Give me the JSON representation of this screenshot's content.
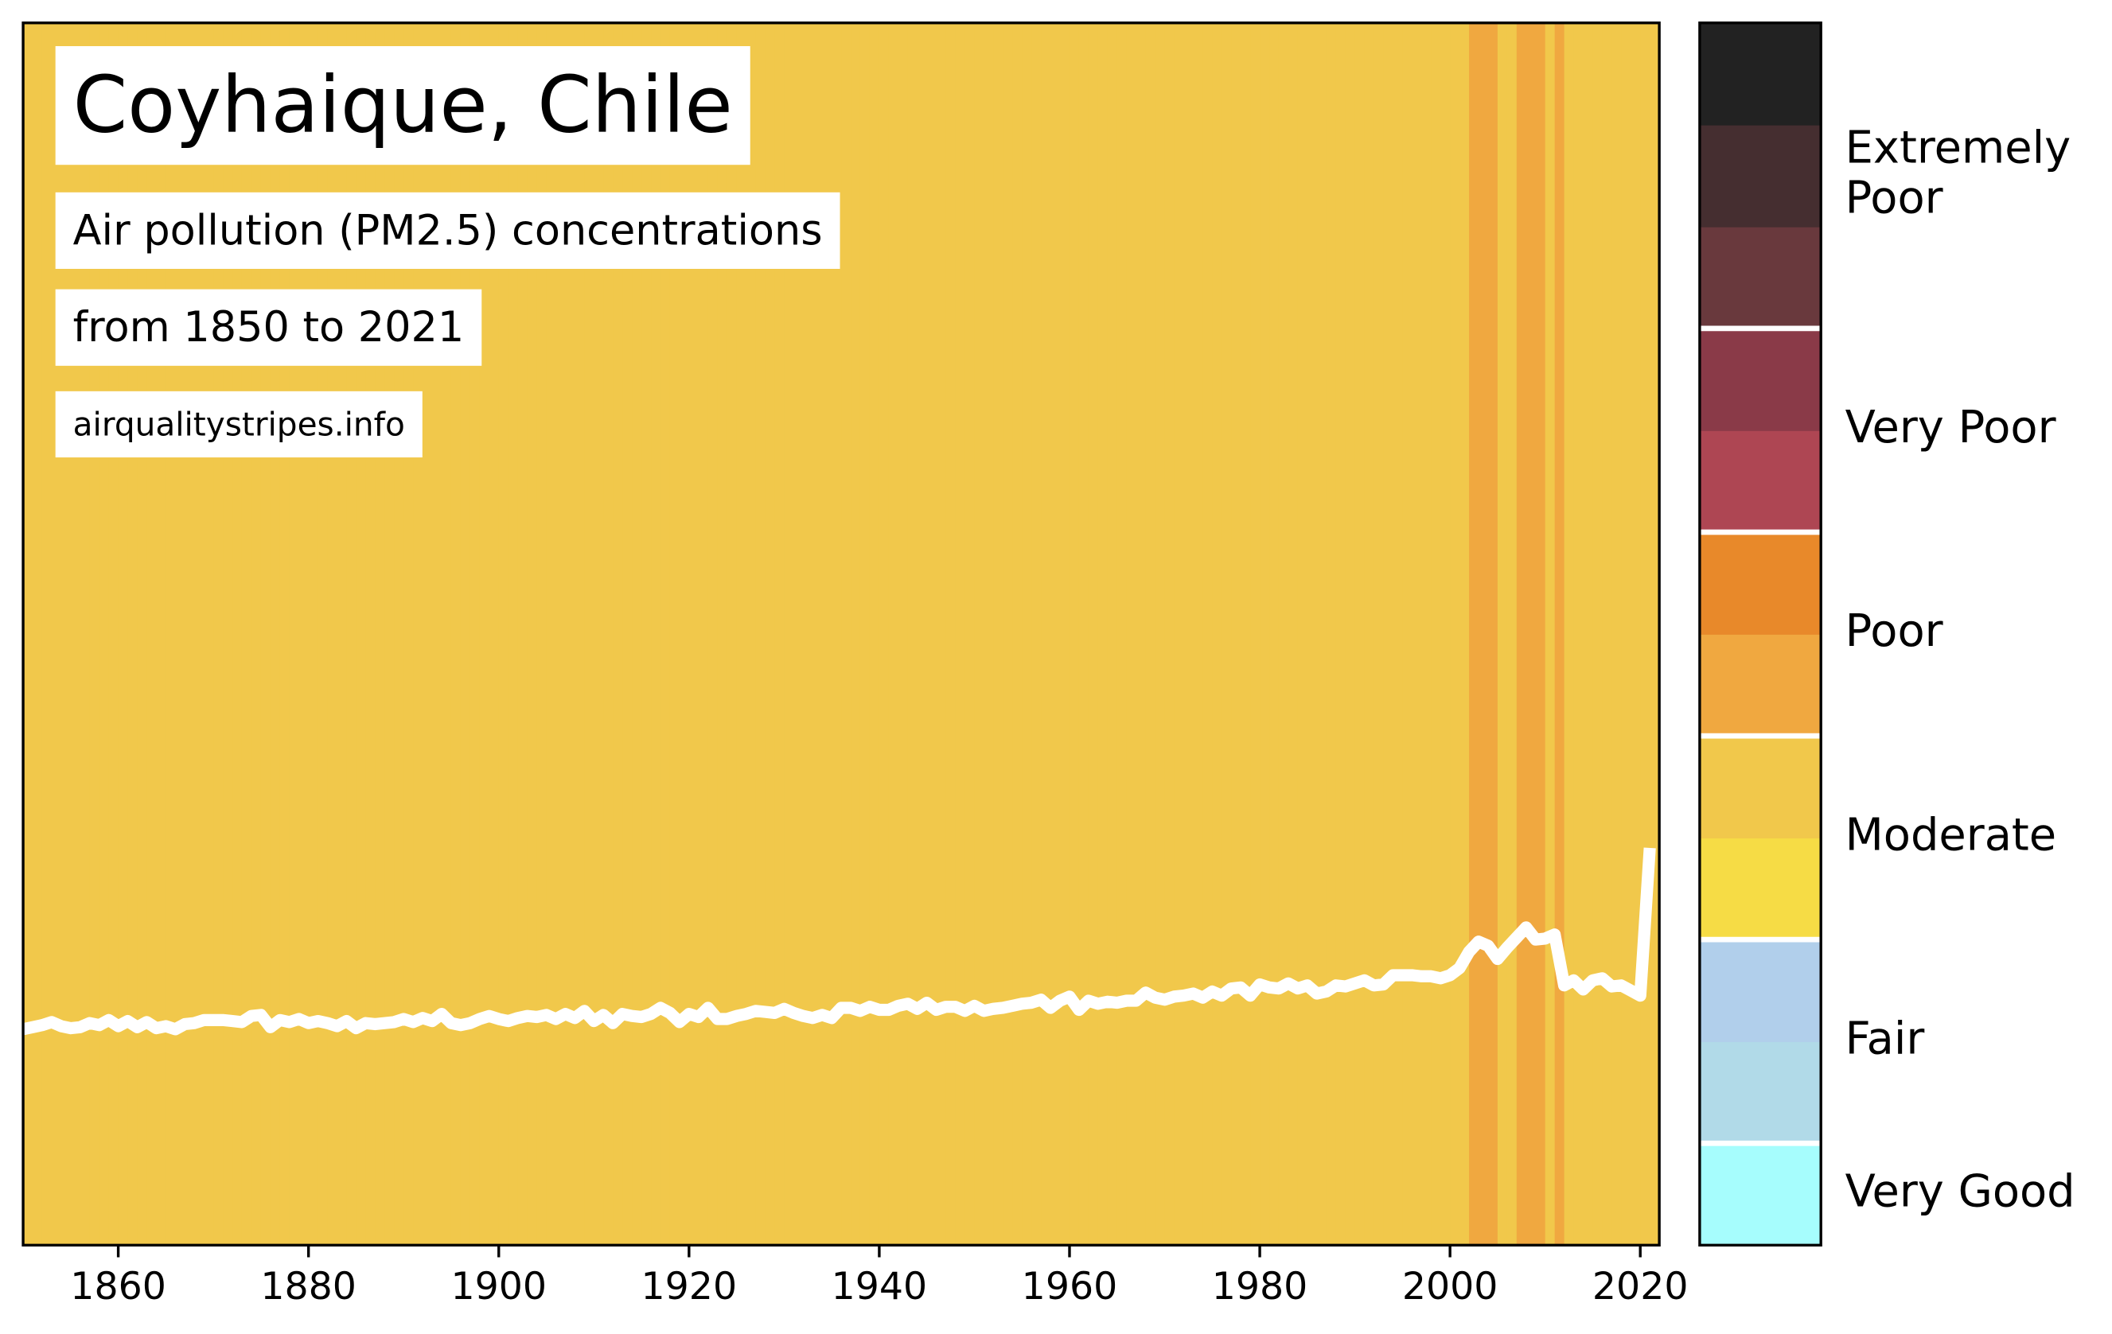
{
  "chart_data": {
    "type": "stripes",
    "title": "Coyhaique, Chile",
    "subtitle": "Air pollution (PM2.5) concentrations",
    "period": "from 1850 to 2021",
    "source": "airqualitystripes.info",
    "xlim": [
      1850,
      2022
    ],
    "xticks": [
      1860,
      1880,
      1900,
      1920,
      1940,
      1960,
      1980,
      2000,
      2020
    ],
    "ylim": [
      0,
      12
    ],
    "x": [
      1850,
      1851,
      1852,
      1853,
      1854,
      1855,
      1856,
      1857,
      1858,
      1859,
      1860,
      1861,
      1862,
      1863,
      1864,
      1865,
      1866,
      1867,
      1868,
      1869,
      1870,
      1871,
      1872,
      1873,
      1874,
      1875,
      1876,
      1877,
      1878,
      1879,
      1880,
      1881,
      1882,
      1883,
      1884,
      1885,
      1886,
      1887,
      1888,
      1889,
      1890,
      1891,
      1892,
      1893,
      1894,
      1895,
      1896,
      1897,
      1898,
      1899,
      1900,
      1901,
      1902,
      1903,
      1904,
      1905,
      1906,
      1907,
      1908,
      1909,
      1910,
      1911,
      1912,
      1913,
      1914,
      1915,
      1916,
      1917,
      1918,
      1919,
      1920,
      1921,
      1922,
      1923,
      1924,
      1925,
      1926,
      1927,
      1928,
      1929,
      1930,
      1931,
      1932,
      1933,
      1934,
      1935,
      1936,
      1937,
      1938,
      1939,
      1940,
      1941,
      1942,
      1943,
      1944,
      1945,
      1946,
      1947,
      1948,
      1949,
      1950,
      1951,
      1952,
      1953,
      1954,
      1955,
      1956,
      1957,
      1958,
      1959,
      1960,
      1961,
      1962,
      1963,
      1964,
      1965,
      1966,
      1967,
      1968,
      1969,
      1970,
      1971,
      1972,
      1973,
      1974,
      1975,
      1976,
      1977,
      1978,
      1979,
      1980,
      1981,
      1982,
      1983,
      1984,
      1985,
      1986,
      1987,
      1988,
      1989,
      1990,
      1991,
      1992,
      1993,
      1994,
      1995,
      1996,
      1997,
      1998,
      1999,
      2000,
      2001,
      2002,
      2003,
      2004,
      2005,
      2006,
      2007,
      2008,
      2009,
      2010,
      2011,
      2012,
      2013,
      2014,
      2015,
      2016,
      2017,
      2018,
      2019,
      2020,
      2021
    ],
    "values": [
      2.12,
      2.14,
      2.16,
      2.19,
      2.15,
      2.13,
      2.14,
      2.18,
      2.16,
      2.21,
      2.15,
      2.2,
      2.14,
      2.19,
      2.13,
      2.15,
      2.12,
      2.17,
      2.18,
      2.21,
      2.21,
      2.21,
      2.2,
      2.19,
      2.25,
      2.26,
      2.14,
      2.21,
      2.19,
      2.22,
      2.18,
      2.2,
      2.18,
      2.15,
      2.2,
      2.13,
      2.18,
      2.17,
      2.18,
      2.19,
      2.22,
      2.19,
      2.23,
      2.2,
      2.27,
      2.18,
      2.16,
      2.18,
      2.22,
      2.25,
      2.22,
      2.2,
      2.23,
      2.25,
      2.24,
      2.26,
      2.22,
      2.27,
      2.23,
      2.3,
      2.2,
      2.26,
      2.18,
      2.27,
      2.25,
      2.24,
      2.27,
      2.33,
      2.28,
      2.19,
      2.27,
      2.24,
      2.33,
      2.22,
      2.22,
      2.25,
      2.27,
      2.3,
      2.29,
      2.28,
      2.32,
      2.28,
      2.25,
      2.23,
      2.26,
      2.23,
      2.33,
      2.33,
      2.3,
      2.34,
      2.31,
      2.31,
      2.35,
      2.37,
      2.32,
      2.38,
      2.31,
      2.34,
      2.34,
      2.3,
      2.35,
      2.3,
      2.32,
      2.33,
      2.35,
      2.37,
      2.38,
      2.41,
      2.33,
      2.4,
      2.44,
      2.31,
      2.4,
      2.37,
      2.39,
      2.38,
      2.4,
      2.4,
      2.48,
      2.43,
      2.41,
      2.44,
      2.45,
      2.47,
      2.43,
      2.49,
      2.45,
      2.52,
      2.53,
      2.45,
      2.56,
      2.53,
      2.52,
      2.57,
      2.52,
      2.55,
      2.47,
      2.49,
      2.55,
      2.54,
      2.57,
      2.6,
      2.55,
      2.56,
      2.65,
      2.65,
      2.65,
      2.64,
      2.64,
      2.62,
      2.65,
      2.72,
      2.88,
      2.98,
      2.94,
      2.81,
      2.92,
      3.02,
      3.12,
      3.0,
      3.01,
      3.05,
      2.55,
      2.6,
      2.51,
      2.6,
      2.62,
      2.54,
      2.55,
      2.5,
      2.45,
      3.9
    ],
    "line_color": "#ffffff",
    "stripe_colors": [
      "#f1c84b",
      "#f1c84b",
      "#f1c84b",
      "#f1c84b",
      "#f1c84b",
      "#f1c84b",
      "#f1c84b",
      "#f1c84b",
      "#f1c84b",
      "#f1c84b",
      "#f1c84b",
      "#f1c84b",
      "#f1c84b",
      "#f1c84b",
      "#f1c84b",
      "#f1c84b",
      "#f1c84b",
      "#f1c84b",
      "#f1c84b",
      "#f1c84b",
      "#f1c84b",
      "#f1c84b",
      "#f1c84b",
      "#f1c84b",
      "#f1c84b",
      "#f1c84b",
      "#f1c84b",
      "#f1c84b",
      "#f1c84b",
      "#f1c84b",
      "#f1c84b",
      "#f1c84b",
      "#f1c84b",
      "#f1c84b",
      "#f1c84b",
      "#f1c84b",
      "#f1c84b",
      "#f1c84b",
      "#f1c84b",
      "#f1c84b",
      "#f1c84b",
      "#f1c84b",
      "#f1c84b",
      "#f1c84b",
      "#f1c84b",
      "#f1c84b",
      "#f1c84b",
      "#f1c84b",
      "#f1c84b",
      "#f1c84b",
      "#f1c84b",
      "#f1c84b",
      "#f1c84b",
      "#f1c84b",
      "#f1c84b",
      "#f1c84b",
      "#f1c84b",
      "#f1c84b",
      "#f1c84b",
      "#f1c84b",
      "#f1c84b",
      "#f1c84b",
      "#f1c84b",
      "#f1c84b",
      "#f1c84b",
      "#f1c84b",
      "#f1c84b",
      "#f1c84b",
      "#f1c84b",
      "#f1c84b",
      "#f1c84b",
      "#f1c84b",
      "#f1c84b",
      "#f1c84b",
      "#f1c84b",
      "#f1c84b",
      "#f1c84b",
      "#f1c84b",
      "#f1c84b",
      "#f1c84b",
      "#f1c84b",
      "#f1c84b",
      "#f1c84b",
      "#f1c84b",
      "#f1c84b",
      "#f1c84b",
      "#f1c84b",
      "#f1c84b",
      "#f1c84b",
      "#f1c84b",
      "#f1c84b",
      "#f1c84b",
      "#f1c84b",
      "#f1c84b",
      "#f1c84b",
      "#f1c84b",
      "#f1c84b",
      "#f1c84b",
      "#f1c84b",
      "#f1c84b",
      "#f1c84b",
      "#f1c84b",
      "#f1c84b",
      "#f1c84b",
      "#f1c84b",
      "#f1c84b",
      "#f1c84b",
      "#f1c84b",
      "#f1c84b",
      "#f1c84b",
      "#f1c84b",
      "#f1c84b",
      "#f1c84b",
      "#f1c84b",
      "#f1c84b",
      "#f1c84b",
      "#f1c84b",
      "#f1c84b",
      "#f1c84b",
      "#f1c84b",
      "#f1c84b",
      "#f1c84b",
      "#f1c84b",
      "#f1c84b",
      "#f1c84b",
      "#f1c84b",
      "#f1c84b",
      "#f1c84b",
      "#f1c84b",
      "#f1c84b",
      "#f1c84b",
      "#f1c84b",
      "#f1c84b",
      "#f1c84b",
      "#f1c84b",
      "#f1c84b",
      "#f1c84b",
      "#f1c84b",
      "#f1c84b",
      "#f1c84b",
      "#f1c84b",
      "#f1c84b",
      "#f1c84b",
      "#f1c84b",
      "#f1c84b",
      "#f1c84b",
      "#f1c84b",
      "#f1c84b",
      "#f1c84b",
      "#f1c84b",
      "#f1c84b",
      "#f1c84b",
      "#f0a840",
      "#f0a840",
      "#f0a840",
      "#f1c84b",
      "#f1c84b",
      "#f0a840",
      "#f0a840",
      "#f0a840",
      "#f1c84b",
      "#f0a840",
      "#f1c84b",
      "#f1c84b",
      "#f1c84b",
      "#f1c84b",
      "#f1c84b",
      "#f1c84b",
      "#f1c84b",
      "#f1c84b",
      "#f1c84b",
      "#f1c84b"
    ],
    "colorbar_colors": [
      "#a6fdfd",
      "#b1dae8",
      "#b1cfeb",
      "#f6dc45",
      "#f1c84b",
      "#f0a840",
      "#e8892a",
      "#ae4653",
      "#8a3a48",
      "#69393d",
      "#452e30",
      "#222222"
    ],
    "levels": [
      {
        "label": [
          "Very Good"
        ],
        "range": [
          0,
          1
        ]
      },
      {
        "label": [
          "Fair"
        ],
        "range": [
          1,
          3
        ]
      },
      {
        "label": [
          "Moderate"
        ],
        "range": [
          3,
          5
        ]
      },
      {
        "label": [
          "Poor"
        ],
        "range": [
          5,
          7
        ]
      },
      {
        "label": [
          "Very Poor"
        ],
        "range": [
          7,
          9
        ]
      },
      {
        "label": [
          "Extremely",
          "Poor"
        ],
        "range": [
          9,
          12
        ]
      }
    ]
  }
}
